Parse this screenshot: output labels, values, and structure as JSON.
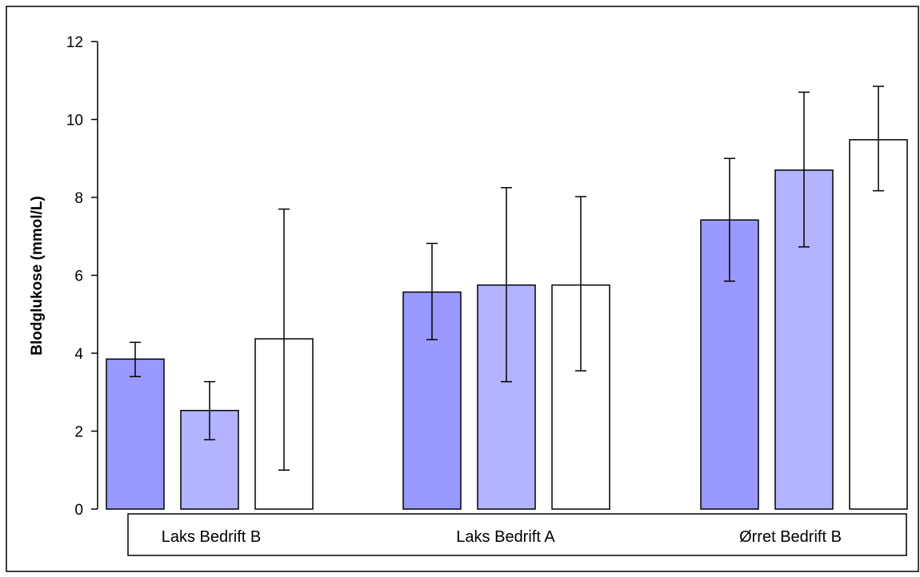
{
  "chart_data": {
    "type": "bar",
    "title": "",
    "xlabel": "",
    "ylabel": "Blodglukose (mmol/L)",
    "ylim": [
      0,
      12
    ],
    "yticks": [
      "0",
      "2",
      "4",
      "6",
      "8",
      "10",
      "12"
    ],
    "grid": false,
    "legend": "none",
    "categories": [
      "Laks Bedrift B",
      "Laks Bedrift A",
      "Ørret Bedrift B"
    ],
    "series": [
      {
        "color": "#9999FF",
        "values": [
          3.85,
          5.57,
          7.42
        ],
        "err_low": [
          3.4,
          4.35,
          5.85
        ],
        "err_high": [
          4.28,
          6.82,
          9.0
        ]
      },
      {
        "color": "#B3B3FF",
        "values": [
          2.53,
          5.75,
          8.7
        ],
        "err_low": [
          1.78,
          3.27,
          6.73
        ],
        "err_high": [
          3.27,
          8.25,
          10.7
        ]
      },
      {
        "color": "#FFFFFF",
        "values": [
          4.37,
          5.75,
          9.48
        ],
        "err_low": [
          1.0,
          3.55,
          8.17
        ],
        "err_high": [
          7.7,
          8.02,
          10.85
        ]
      }
    ]
  }
}
